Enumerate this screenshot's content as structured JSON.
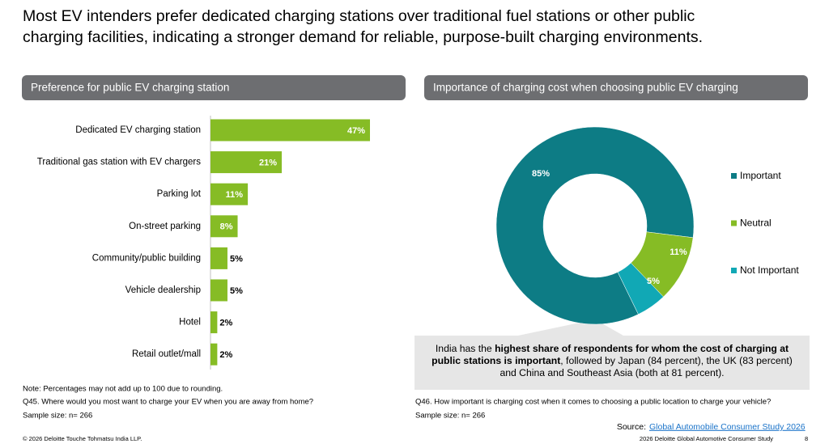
{
  "headline": [
    "Most EV intenders prefer dedicated charging stations over traditional fuel stations or other public",
    "charging facilities, indicating a stronger demand for reliable, purpose-built charging environments."
  ],
  "chart_data": [
    {
      "type": "bar",
      "title": "Preference for public EV charging station",
      "categories": [
        "Dedicated EV charging station",
        "Traditional gas station with EV chargers",
        "Parking lot",
        "On-street parking",
        "Community/public building",
        "Vehicle dealership",
        "Hotel",
        "Retail outlet/mall"
      ],
      "values": [
        47,
        21,
        11,
        8,
        5,
        5,
        2,
        2
      ],
      "value_labels": [
        "47%",
        "21%",
        "11%",
        "8%",
        "5%",
        "5%",
        "2%",
        "2%"
      ],
      "color": "#86bc25"
    },
    {
      "type": "pie",
      "title": "Importance of charging cost when choosing public EV charging",
      "categories": [
        "Important",
        "Neutral",
        "Not Important"
      ],
      "values": [
        85,
        11,
        5
      ],
      "value_labels": [
        "85%",
        "11%",
        "5%"
      ],
      "colors": [
        "#0d7c85",
        "#86bc25",
        "#11a8b5"
      ],
      "legend": "right"
    }
  ],
  "callout": {
    "before": "India has the ",
    "bold": "highest share of respondents for whom the cost of charging at public stations is important",
    "after": ", followed by Japan (84 percent), the UK (83 percent) and China and Southeast Asia (both at 81 percent)."
  },
  "notes": {
    "left": [
      "Note: Percentages may not add up to 100 due to rounding.",
      "Q45. Where would you most want to charge your EV when you are away from home?",
      "Sample size: n= 266"
    ],
    "right": [
      "Q46. How important is charging cost when it comes to choosing a public location to charge your vehicle?",
      "Sample size: n= 266"
    ]
  },
  "source": {
    "label": "Source:",
    "link": "Global Automobile Consumer Study 2026"
  },
  "footer": {
    "left": "© 2026 Deloitte Touche Tohmatsu India LLP.",
    "right": "2026 Deloitte Global Automotive Consumer Study",
    "page": "8"
  }
}
